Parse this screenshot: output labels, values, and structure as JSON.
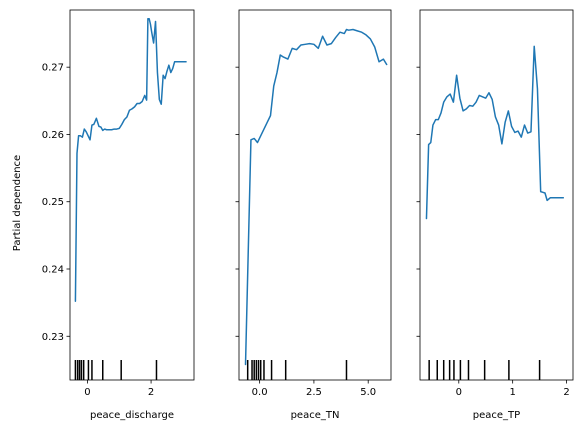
{
  "chart_data": [
    {
      "type": "line",
      "title": "",
      "xlabel": "peace_discharge",
      "ylabel": "Partial dependence",
      "xlim": [
        -0.55,
        3.35
      ],
      "ylim": [
        0.2235,
        0.2785
      ],
      "xticks": [
        0,
        2
      ],
      "xtick_labels": [
        "0",
        "2"
      ],
      "yticks": [
        0.23,
        0.24,
        0.25,
        0.26,
        0.27
      ],
      "ytick_labels": [
        "0.23",
        "0.24",
        "0.25",
        "0.26",
        "0.27"
      ],
      "show_yticklabels": true,
      "grid": false,
      "line_color": "#1f77b4",
      "x": [
        -0.38,
        -0.33,
        -0.28,
        -0.22,
        -0.16,
        -0.1,
        -0.04,
        0.02,
        0.08,
        0.14,
        0.2,
        0.28,
        0.36,
        0.42,
        0.48,
        0.54,
        0.6,
        0.68,
        0.76,
        0.84,
        0.92,
        1.0,
        1.08,
        1.16,
        1.24,
        1.32,
        1.4,
        1.48,
        1.56,
        1.64,
        1.72,
        1.8,
        1.86,
        1.9,
        1.94,
        1.98,
        2.02,
        2.08,
        2.14,
        2.2,
        2.26,
        2.32,
        2.38,
        2.44,
        2.5,
        2.56,
        2.62,
        2.68,
        2.74,
        2.8,
        2.86,
        2.92,
        2.98,
        3.04,
        3.1
      ],
      "y": [
        0.2352,
        0.2572,
        0.2598,
        0.2598,
        0.2596,
        0.2608,
        0.2604,
        0.2598,
        0.2592,
        0.2614,
        0.2615,
        0.2624,
        0.2612,
        0.2611,
        0.2606,
        0.2608,
        0.2607,
        0.2607,
        0.2607,
        0.2608,
        0.2608,
        0.2609,
        0.2615,
        0.2622,
        0.2626,
        0.2636,
        0.2638,
        0.2641,
        0.2646,
        0.2646,
        0.2649,
        0.2658,
        0.2651,
        0.2772,
        0.2772,
        0.2764,
        0.2752,
        0.2736,
        0.2768,
        0.2692,
        0.2652,
        0.2645,
        0.2688,
        0.2683,
        0.2694,
        0.2703,
        0.2692,
        0.2698,
        0.2708,
        0.2708,
        0.2708,
        0.2708,
        0.2708,
        0.2708,
        0.2708
      ],
      "rug": [
        -0.38,
        -0.31,
        -0.25,
        -0.19,
        -0.12,
        0.03,
        0.14,
        0.48,
        1.06,
        2.17
      ]
    },
    {
      "type": "line",
      "title": "",
      "xlabel": "peace_TN",
      "ylabel": "",
      "xlim": [
        -0.95,
        6.05
      ],
      "ylim": [
        0.2235,
        0.2785
      ],
      "xticks": [
        0.0,
        2.5,
        5.0
      ],
      "xtick_labels": [
        "0.0",
        "2.5",
        "5.0"
      ],
      "yticks": [
        0.23,
        0.24,
        0.25,
        0.26,
        0.27
      ],
      "ytick_labels": [
        "0.23",
        "0.24",
        "0.25",
        "0.26",
        "0.27"
      ],
      "show_yticklabels": false,
      "grid": false,
      "line_color": "#1f77b4",
      "x": [
        -0.65,
        -0.4,
        -0.25,
        -0.1,
        0.05,
        0.2,
        0.35,
        0.5,
        0.65,
        0.8,
        0.95,
        1.1,
        1.3,
        1.5,
        1.7,
        1.9,
        2.1,
        2.3,
        2.5,
        2.7,
        2.9,
        3.1,
        3.3,
        3.5,
        3.7,
        3.9,
        4.0,
        4.1,
        4.3,
        4.5,
        4.7,
        4.9,
        5.1,
        5.3,
        5.5,
        5.7,
        5.85
      ],
      "y": [
        0.2258,
        0.2592,
        0.2594,
        0.2588,
        0.2598,
        0.2608,
        0.2618,
        0.2628,
        0.2672,
        0.2692,
        0.2718,
        0.2715,
        0.2712,
        0.2728,
        0.2726,
        0.2733,
        0.2734,
        0.2735,
        0.2734,
        0.2728,
        0.2746,
        0.2733,
        0.2735,
        0.2744,
        0.2752,
        0.275,
        0.2756,
        0.2755,
        0.2756,
        0.2754,
        0.2752,
        0.2748,
        0.2742,
        0.273,
        0.2708,
        0.2712,
        0.2704
      ],
      "rug": [
        -0.55,
        -0.35,
        -0.25,
        -0.15,
        -0.05,
        0.05,
        0.2,
        0.55,
        1.2,
        4.0
      ]
    },
    {
      "type": "line",
      "title": "",
      "xlabel": "peace_TP",
      "ylabel": "",
      "xlim": [
        -0.72,
        2.12
      ],
      "ylim": [
        0.2235,
        0.2785
      ],
      "xticks": [
        0,
        1,
        2
      ],
      "xtick_labels": [
        "0",
        "1",
        "2"
      ],
      "yticks": [
        0.23,
        0.24,
        0.25,
        0.26,
        0.27
      ],
      "ytick_labels": [
        "0.23",
        "0.24",
        "0.25",
        "0.26",
        "0.27"
      ],
      "show_yticklabels": false,
      "grid": false,
      "line_color": "#1f77b4",
      "x": [
        -0.6,
        -0.56,
        -0.52,
        -0.48,
        -0.43,
        -0.38,
        -0.33,
        -0.28,
        -0.22,
        -0.16,
        -0.1,
        -0.04,
        0.02,
        0.08,
        0.14,
        0.2,
        0.26,
        0.32,
        0.38,
        0.44,
        0.5,
        0.56,
        0.62,
        0.68,
        0.74,
        0.8,
        0.86,
        0.92,
        0.98,
        1.04,
        1.1,
        1.16,
        1.22,
        1.28,
        1.34,
        1.4,
        1.46,
        1.52,
        1.56,
        1.6,
        1.64,
        1.7,
        1.76,
        1.82,
        1.88,
        1.94
      ],
      "y": [
        0.2475,
        0.2585,
        0.2588,
        0.2614,
        0.2622,
        0.2622,
        0.2632,
        0.2648,
        0.2656,
        0.266,
        0.2648,
        0.2688,
        0.2654,
        0.2635,
        0.2638,
        0.2643,
        0.2642,
        0.2648,
        0.2658,
        0.2656,
        0.2654,
        0.2662,
        0.2652,
        0.2626,
        0.2614,
        0.2586,
        0.2618,
        0.2635,
        0.2612,
        0.2603,
        0.2605,
        0.2596,
        0.2614,
        0.2602,
        0.2604,
        0.2731,
        0.2668,
        0.2515,
        0.2514,
        0.2513,
        0.2502,
        0.2506,
        0.2506,
        0.2506,
        0.2506,
        0.2506
      ],
      "rug": [
        -0.55,
        -0.4,
        -0.28,
        -0.17,
        -0.09,
        0.03,
        0.18,
        0.48,
        0.93,
        1.5
      ]
    }
  ]
}
